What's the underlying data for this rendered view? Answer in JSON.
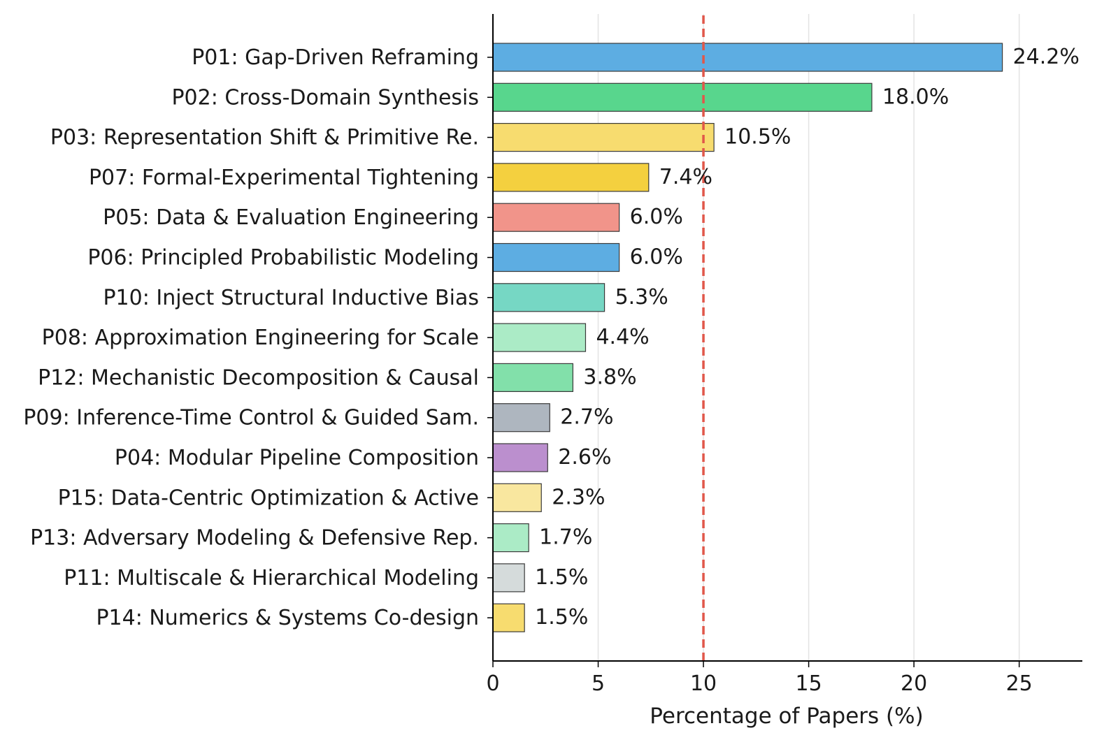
{
  "chart_data": {
    "type": "bar",
    "orientation": "horizontal",
    "title": "",
    "xlabel": "Percentage of Papers (%)",
    "ylabel": "",
    "xlim": [
      0,
      28
    ],
    "xticks": [
      0,
      5,
      10,
      15,
      20,
      25
    ],
    "grid": "vertical",
    "reference_line": {
      "x": 10,
      "style": "dashed",
      "color": "#e0574a"
    },
    "categories": [
      "P01: Gap-Driven Reframing",
      "P02: Cross-Domain Synthesis",
      "P03: Representation Shift & Primitive Re.",
      "P07: Formal-Experimental Tightening",
      "P05: Data & Evaluation Engineering",
      "P06: Principled Probabilistic Modeling",
      "P10: Inject Structural Inductive Bias",
      "P08: Approximation Engineering for Scale",
      "P12: Mechanistic Decomposition & Causal",
      "P09: Inference-Time Control & Guided Sam.",
      "P04: Modular Pipeline Composition",
      "P15: Data-Centric Optimization & Active",
      "P13: Adversary Modeling & Defensive Rep.",
      "P11: Multiscale & Hierarchical Modeling",
      "P14: Numerics & Systems Co-design"
    ],
    "values": [
      24.2,
      18.0,
      10.5,
      7.4,
      6.0,
      6.0,
      5.3,
      4.4,
      3.8,
      2.7,
      2.6,
      2.3,
      1.7,
      1.5,
      1.5
    ],
    "value_labels": [
      "24.2%",
      "18.0%",
      "10.5%",
      "7.4%",
      "6.0%",
      "6.0%",
      "5.3%",
      "4.4%",
      "3.8%",
      "2.7%",
      "2.6%",
      "2.3%",
      "1.7%",
      "1.5%",
      "1.5%"
    ],
    "colors": [
      "#5dade2",
      "#58d68d",
      "#f7dc6f",
      "#f4d03f",
      "#f1948a",
      "#5dade2",
      "#76d7c4",
      "#abebc6",
      "#82e0aa",
      "#aeb6bf",
      "#bb8fce",
      "#f9e79f",
      "#abebc6",
      "#d5dbdb",
      "#f7dc6f"
    ]
  }
}
